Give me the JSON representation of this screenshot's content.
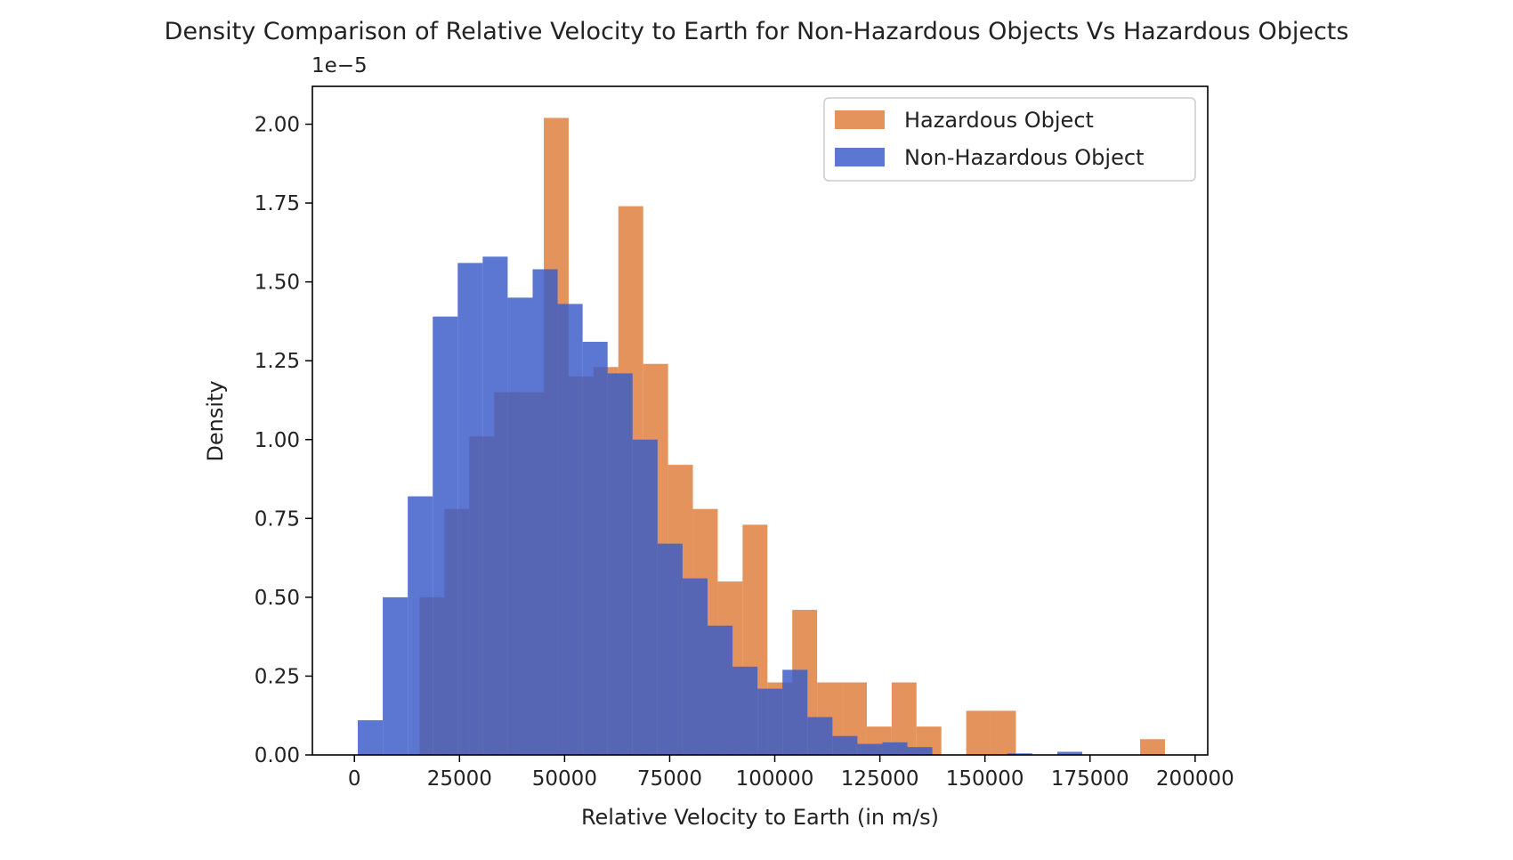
{
  "chart_data": {
    "type": "bar",
    "title": "Density Comparison of Relative Velocity to Earth for Non-Hazardous Objects Vs Hazardous Objects",
    "xlabel": "Relative Velocity to Earth (in m/s)",
    "ylabel": "Density",
    "y_offset_label": "1e−5",
    "y_scale": 1e-05,
    "xlim": [
      -10000,
      203000
    ],
    "ylim": [
      0,
      2.12
    ],
    "x_ticks": [
      0,
      25000,
      50000,
      75000,
      100000,
      125000,
      150000,
      175000,
      200000
    ],
    "x_tick_labels": [
      "0",
      "25000",
      "50000",
      "75000",
      "100000",
      "125000",
      "150000",
      "175000",
      "200000"
    ],
    "y_ticks": [
      0,
      0.25,
      0.5,
      0.75,
      1.0,
      1.25,
      1.5,
      1.75,
      2.0
    ],
    "y_tick_labels": [
      "0.00",
      "0.25",
      "0.50",
      "0.75",
      "1.00",
      "1.25",
      "1.50",
      "1.75",
      "2.00"
    ],
    "grid": false,
    "legend_position": "top-right",
    "series": [
      {
        "name": "Hazardous Object",
        "color": "#e0803f",
        "opacity": 0.85,
        "bin_edges": [
          15500,
          21411,
          27322,
          33233,
          39144,
          45055,
          50966,
          56877,
          62788,
          68699,
          74610,
          80521,
          86432,
          92343,
          98254,
          104165,
          110076,
          115987,
          121898,
          127809,
          133720,
          139631,
          145542,
          151453,
          157364,
          163275,
          169186,
          175097,
          181008,
          186919,
          192830
        ],
        "values": [
          0.5,
          0.78,
          1.01,
          1.15,
          1.15,
          2.02,
          1.2,
          1.23,
          1.74,
          1.24,
          0.92,
          0.78,
          0.55,
          0.73,
          0.23,
          0.46,
          0.23,
          0.23,
          0.09,
          0.23,
          0.09,
          0,
          0.14,
          0.14,
          0,
          0,
          0,
          0,
          0,
          0.05
        ]
      },
      {
        "name": "Non-Hazardous Object",
        "color": "#3a5bc8",
        "opacity": 0.83,
        "bin_edges": [
          800,
          6743,
          12686,
          18629,
          24572,
          30515,
          36458,
          42401,
          48344,
          54287,
          60230,
          66173,
          72116,
          78059,
          84002,
          89945,
          95888,
          101831,
          107774,
          113717,
          119660,
          125603,
          131546,
          137489,
          143432,
          149375,
          155318,
          161261,
          167204,
          173147,
          179090
        ],
        "values": [
          0.11,
          0.5,
          0.82,
          1.39,
          1.56,
          1.58,
          1.45,
          1.54,
          1.43,
          1.31,
          1.21,
          1.0,
          0.67,
          0.56,
          0.41,
          0.28,
          0.21,
          0.27,
          0.12,
          0.06,
          0.035,
          0.04,
          0.025,
          0,
          0,
          0,
          0.005,
          0,
          0.01,
          0
        ]
      }
    ]
  }
}
